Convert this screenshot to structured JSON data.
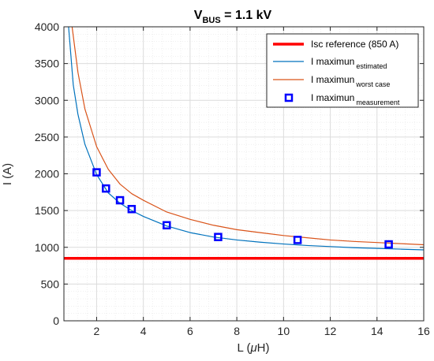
{
  "chart_data": {
    "type": "line",
    "title": "V",
    "title_sub": "BUS",
    "title_rest": " = 1.1 kV",
    "xlabel": "L (",
    "xlabel_greek": "μ",
    "xlabel_rest": "H)",
    "ylabel": "I (A)",
    "xlim": [
      0.6,
      16
    ],
    "ylim": [
      0,
      4000
    ],
    "xticks": [
      2,
      4,
      6,
      8,
      10,
      12,
      14,
      16
    ],
    "yticks": [
      0,
      500,
      1000,
      1500,
      2000,
      2500,
      3000,
      3500,
      4000
    ],
    "grid": true,
    "legend_position": "top-right",
    "series": [
      {
        "name": "Isc reference (850 A)",
        "color": "#ff0000",
        "style": "line",
        "x": [
          0.6,
          16
        ],
        "y": [
          850,
          850
        ]
      },
      {
        "name": "I maximun",
        "name_sub": "estimated",
        "color": "#0072bd",
        "style": "line",
        "x": [
          0.8,
          1,
          1.2,
          1.5,
          2,
          2.5,
          3,
          3.5,
          4,
          5,
          6,
          7,
          8,
          9,
          10,
          11,
          12,
          13,
          14,
          15,
          16
        ],
        "y": [
          4000,
          3210,
          2810,
          2400,
          1990,
          1740,
          1600,
          1500,
          1420,
          1290,
          1200,
          1140,
          1100,
          1070,
          1045,
          1025,
          1010,
          995,
          985,
          975,
          965
        ]
      },
      {
        "name": "I maximun",
        "name_sub": "worst case",
        "color": "#d95319",
        "style": "line",
        "x": [
          0.95,
          1.2,
          1.5,
          2,
          2.5,
          3,
          3.5,
          4,
          5,
          6,
          7,
          8,
          9,
          10,
          11,
          12,
          13,
          14,
          15,
          16
        ],
        "y": [
          4000,
          3380,
          2880,
          2370,
          2060,
          1860,
          1730,
          1640,
          1480,
          1380,
          1300,
          1240,
          1200,
          1160,
          1130,
          1100,
          1080,
          1065,
          1050,
          1035
        ]
      },
      {
        "name": "I maximun",
        "name_sub": "measurement",
        "color": "#0000ff",
        "style": "marker",
        "x": [
          2,
          2.4,
          3,
          3.5,
          5,
          7.2,
          10.6,
          14.5
        ],
        "y": [
          2020,
          1800,
          1640,
          1520,
          1300,
          1140,
          1100,
          1040
        ]
      }
    ]
  }
}
